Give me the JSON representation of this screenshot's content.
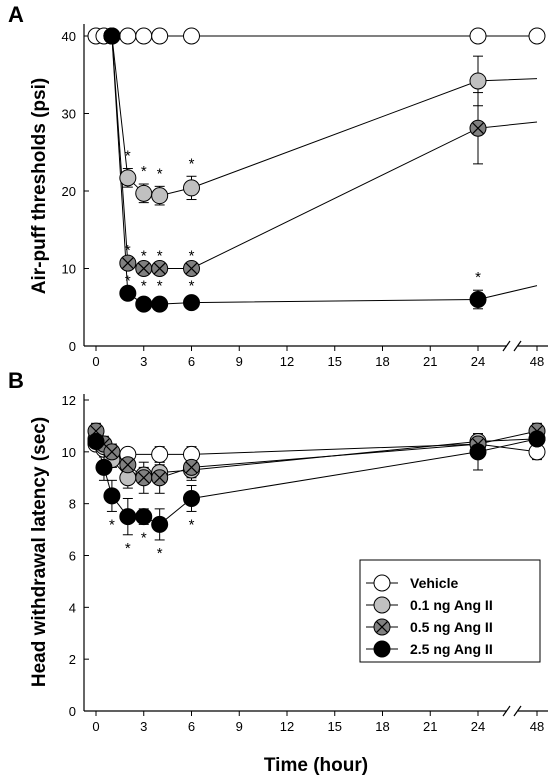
{
  "chart_data": [
    {
      "panel": "A",
      "type": "line",
      "ylabel": "Air-puff thresholds (psi)",
      "xlabel": "",
      "ylim": [
        0,
        40
      ],
      "yticks": [
        "0",
        "10",
        "20",
        "30",
        "40"
      ],
      "xticks": [
        "0",
        "3",
        "6",
        "9",
        "12",
        "15",
        "18",
        "21",
        "24",
        "48"
      ],
      "x_axis_break": "between 24 and 48",
      "series": [
        {
          "name": "Vehicle",
          "color": "#ffffff",
          "points": [
            [
              0,
              40
            ],
            [
              0.5,
              40
            ],
            [
              1,
              40
            ],
            [
              2,
              40
            ],
            [
              3,
              40
            ],
            [
              4,
              40
            ],
            [
              6,
              40
            ],
            [
              24,
              40
            ],
            [
              48,
              40
            ]
          ],
          "err": [
            0,
            0,
            0,
            0,
            0,
            0,
            0,
            0,
            0
          ],
          "stars": []
        },
        {
          "name": "0.1 ng Ang II",
          "color": "#c0c0c0",
          "points": [
            [
              1,
              40
            ],
            [
              2,
              21.7
            ],
            [
              3,
              19.7
            ],
            [
              4,
              19.4
            ],
            [
              6,
              20.4
            ],
            [
              24,
              34.2
            ],
            [
              48,
              34.5
            ]
          ],
          "err": [
            0,
            1.2,
            1.2,
            1.2,
            1.5,
            3.2,
            0
          ],
          "stars": [
            "",
            "*",
            "*",
            "*",
            "*",
            "",
            ""
          ]
        },
        {
          "name": "0.5 ng Ang II",
          "color": "#808080",
          "points": [
            [
              1,
              40
            ],
            [
              2,
              10.7
            ],
            [
              3,
              10
            ],
            [
              4,
              10
            ],
            [
              6,
              10
            ],
            [
              24,
              28.1
            ],
            [
              48,
              28.9
            ]
          ],
          "err": [
            0,
            0,
            0,
            0,
            0,
            4.6,
            0
          ],
          "stars": [
            "",
            "*",
            "*",
            "*",
            "*",
            "",
            ""
          ]
        },
        {
          "name": "2.5 ng Ang II",
          "color": "#000000",
          "points": [
            [
              1,
              40
            ],
            [
              2,
              6.8
            ],
            [
              3,
              5.4
            ],
            [
              4,
              5.4
            ],
            [
              6,
              5.6
            ],
            [
              24,
              6
            ],
            [
              48,
              7.8
            ]
          ],
          "err": [
            0,
            0,
            0.7,
            0.7,
            0.5,
            1.2,
            0
          ],
          "stars": [
            "",
            "*",
            "*",
            "*",
            "*",
            "*",
            ""
          ]
        }
      ]
    },
    {
      "panel": "B",
      "type": "line",
      "ylabel": "Head withdrawal latency (sec)",
      "xlabel": "Time (hour)",
      "ylim": [
        0,
        12
      ],
      "yticks": [
        "0",
        "2",
        "4",
        "6",
        "8",
        "10",
        "12"
      ],
      "xticks": [
        "0",
        "3",
        "6",
        "9",
        "12",
        "15",
        "18",
        "21",
        "24",
        "48"
      ],
      "x_axis_break": "between 24 and 48",
      "legend": "lower-right",
      "series": [
        {
          "name": "Vehicle",
          "color": "#ffffff",
          "points": [
            [
              0,
              10.3
            ],
            [
              0.5,
              10.1
            ],
            [
              1,
              9.9
            ],
            [
              2,
              9.9
            ],
            [
              4,
              9.9
            ],
            [
              6,
              9.9
            ],
            [
              24,
              10.3
            ],
            [
              48,
              10
            ]
          ],
          "err": [
            0.2,
            0.3,
            0.3,
            0.2,
            0.3,
            0.3,
            0.2,
            0.3
          ],
          "stars": [
            "",
            "",
            "",
            "",
            "",
            "",
            "",
            ""
          ]
        },
        {
          "name": "0.1 ng Ang II",
          "color": "#c0c0c0",
          "points": [
            [
              0,
              10.5
            ],
            [
              0.5,
              10.2
            ],
            [
              1,
              9.7
            ],
            [
              2,
              9
            ],
            [
              3,
              9.1
            ],
            [
              4,
              9.2
            ],
            [
              6,
              9.3
            ],
            [
              24,
              10.4
            ],
            [
              48,
              10.5
            ]
          ],
          "err": [
            0.3,
            0.3,
            0.3,
            0.4,
            0.3,
            0.3,
            0.3,
            0.3,
            0.3
          ],
          "stars": [
            "",
            "",
            "",
            "",
            "",
            "",
            "",
            "",
            ""
          ]
        },
        {
          "name": "0.5 ng Ang II",
          "color": "#808080",
          "points": [
            [
              0,
              10.8
            ],
            [
              0.5,
              10.3
            ],
            [
              1,
              10
            ],
            [
              2,
              9.5
            ],
            [
              3,
              9
            ],
            [
              4,
              9
            ],
            [
              6,
              9.4
            ],
            [
              24,
              10.3
            ],
            [
              48,
              10.8
            ]
          ],
          "err": [
            0.3,
            0.3,
            0.3,
            0.3,
            0.6,
            0.6,
            0.5,
            0.3,
            0.3
          ],
          "stars": [
            "",
            "",
            "",
            "",
            "",
            "",
            "",
            "",
            ""
          ]
        },
        {
          "name": "2.5 ng Ang II",
          "color": "#000000",
          "points": [
            [
              0,
              10.4
            ],
            [
              0.5,
              9.4
            ],
            [
              1,
              8.3
            ],
            [
              2,
              7.5
            ],
            [
              3,
              7.5
            ],
            [
              4,
              7.2
            ],
            [
              6,
              8.2
            ],
            [
              24,
              10
            ],
            [
              48,
              10.5
            ]
          ],
          "err": [
            0.3,
            0.5,
            0.6,
            0.7,
            0.3,
            0.6,
            0.5,
            0.7,
            0.3
          ],
          "stars": [
            "",
            "",
            "*",
            "*",
            "*",
            "*",
            "*",
            "",
            ""
          ]
        }
      ]
    }
  ]
}
